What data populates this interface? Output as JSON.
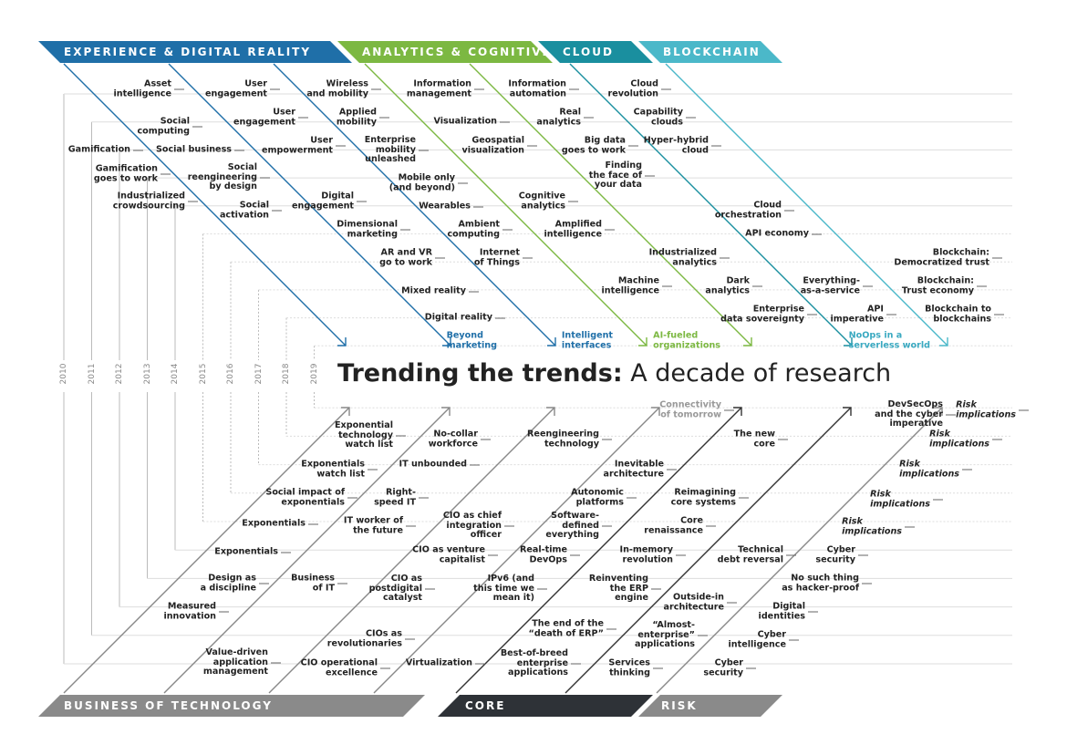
{
  "top_categories": [
    "EXPERIENCE & DIGITAL REALITY",
    "ANALYTICS & COGNITIVE",
    "CLOUD",
    "BLOCKCHAIN"
  ],
  "bottom_categories": [
    "BUSINESS OF TECHNOLOGY",
    "CORE",
    "RISK"
  ],
  "years": [
    "2010",
    "2011",
    "2012",
    "2013",
    "2014",
    "2015",
    "2016",
    "2017",
    "2018",
    "2019"
  ],
  "title": {
    "bold": "Trending the trends:",
    "rest": "A decade of research"
  },
  "top_trends": [
    "Asset\nintelligence",
    "User\nengagement",
    "Wireless\nand mobility",
    "Information\nmanagement",
    "Information\nautomation",
    "Cloud\nrevolution",
    "Social\ncomputing",
    "User\nengagement",
    "Applied\nmobility",
    "Visualization",
    "Real\nanalytics",
    "Capability\nclouds",
    "Gamification",
    "Social business",
    "User\nempowerment",
    "Enterprise\nmobility\nunleashed",
    "Geospatial\nvisualization",
    "Big data\ngoes to work",
    "Hyper-hybrid\ncloud",
    "Gamification\ngoes to work",
    "Social\nreengineering\nby design",
    "Mobile only\n(and beyond)",
    "Finding\nthe face of\nyour data",
    "Industrialized\ncrowdsourcing",
    "Social\nactivation",
    "Digital\nengagement",
    "Wearables",
    "Cognitive\nanalytics",
    "Cloud\norchestration",
    "Dimensional\nmarketing",
    "Ambient\ncomputing",
    "Amplified\nintelligence",
    "API economy",
    "AR and VR\ngo to work",
    "Internet\nof Things",
    "Industrialized\nanalytics",
    "Blockchain:\nDemocratized trust",
    "Mixed reality",
    "Machine\nintelligence",
    "Dark\nanalytics",
    "Everything-\nas-a-service",
    "Blockchain:\nTrust economy",
    "Digital reality",
    "Enterprise\ndata sovereignty",
    "API\nimperative",
    "Blockchain to\nblockchains",
    "Beyond\nmarketing",
    "Intelligent\ninterfaces",
    "AI-fueled\norganizations",
    "NoOps in a\nserverless world"
  ],
  "bottom_trends": [
    "Connectivity\nof tomorrow",
    "DevSecOps\nand the cyber\nimperative",
    "Risk\nimplications",
    "Exponential\ntechnology\nwatch list",
    "No-collar\nworkforce",
    "Reengineering\ntechnology",
    "The new\ncore",
    "Risk\nimplications",
    "Exponentials\nwatch list",
    "IT unbounded",
    "Inevitable\narchitecture",
    "Risk\nimplications",
    "Social impact of\nexponentials",
    "Right-\nspeed IT",
    "Autonomic\nplatforms",
    "Reimagining\ncore systems",
    "Risk\nimplications",
    "Exponentials",
    "IT worker of\nthe future",
    "CIO as chief\nintegration\nofficer",
    "Software-\ndefined\neverything",
    "Core\nrenaissance",
    "Risk\nimplications",
    "Exponentials",
    "CIO as venture\ncapitalist",
    "Real-time\nDevOps",
    "In-memory\nrevolution",
    "Technical\ndebt reversal",
    "Cyber\nsecurity",
    "Design as\na discipline",
    "Business\nof IT",
    "CIO as\npostdigital\ncatalyst",
    "IPv6 (and\nthis time we\nmean it)",
    "Reinventing\nthe ERP\nengine",
    "No such thing\nas hacker-proof",
    "Measured\ninnovation",
    "Outside-in\narchitecture",
    "Digital\nidentities",
    "CIOs as\nrevolutionaries",
    "The end of the\n“death of ERP”",
    "“Almost-\nenterprise”\napplications",
    "Cyber\nintelligence",
    "Value-driven\napplication\nmanagement",
    "CIO operational\nexcellence",
    "Virtualization",
    "Best-of-breed\nenterprise\napplications",
    "Services\nthinking",
    "Cyber\nsecurity"
  ]
}
